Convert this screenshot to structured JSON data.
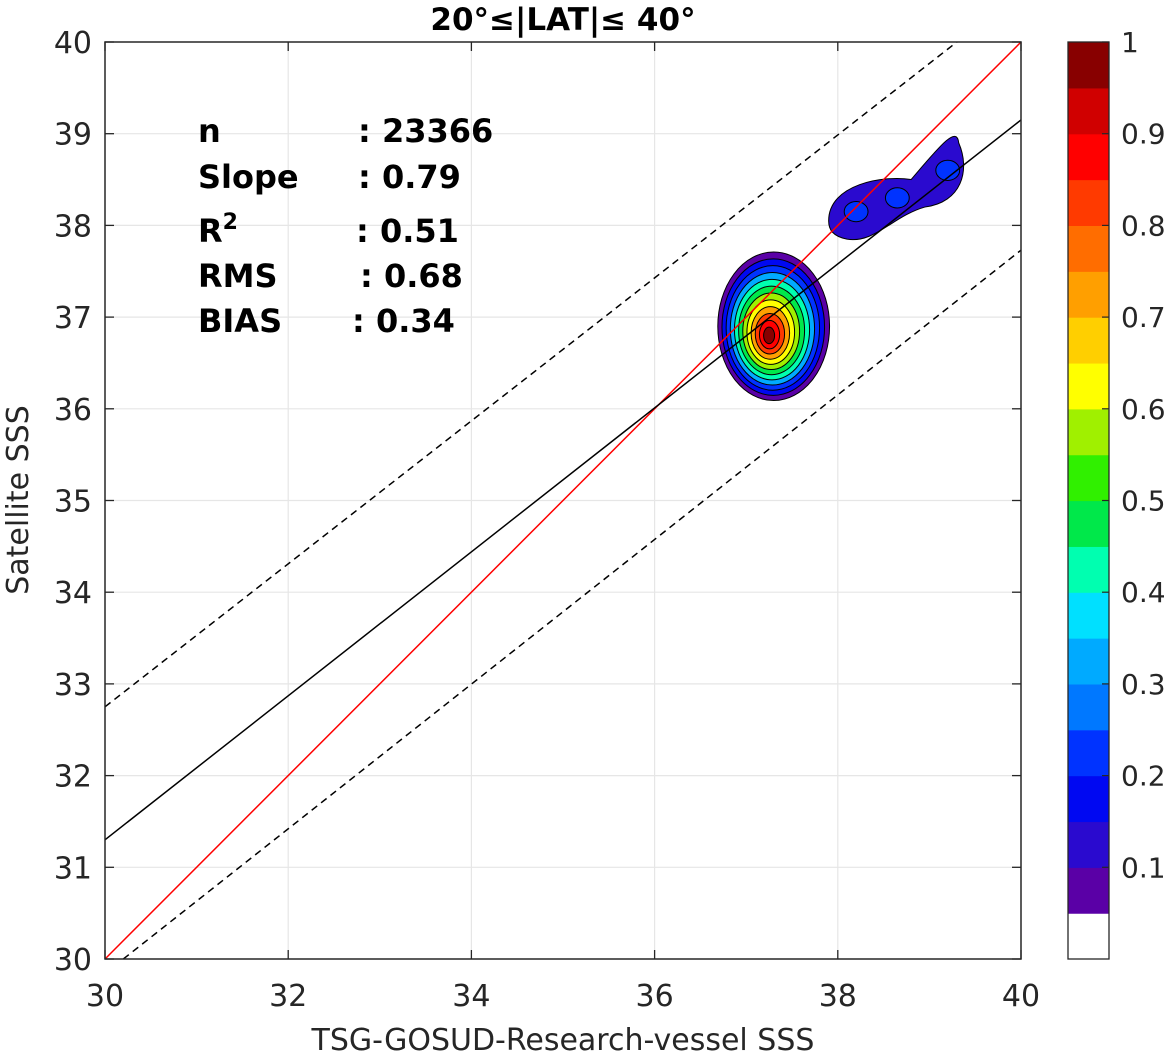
{
  "chart_data": {
    "type": "contour",
    "title": "20°≤|LAT|≤ 40°",
    "xlabel": "TSG-GOSUD-Research-vessel SSS",
    "ylabel": "Satellite SSS",
    "xlim": [
      30,
      40
    ],
    "ylim": [
      30,
      40
    ],
    "xticks": [
      "30",
      "32",
      "34",
      "36",
      "38",
      "40"
    ],
    "yticks": [
      "30",
      "31",
      "32",
      "33",
      "34",
      "35",
      "36",
      "37",
      "38",
      "39",
      "40"
    ],
    "grid": true,
    "stats": [
      {
        "label": "n",
        "value": ": 23366"
      },
      {
        "label": "Slope",
        "value": ": 0.79"
      },
      {
        "label": "R",
        "sup": "2",
        "value": ": 0.51"
      },
      {
        "label": "RMS",
        "value": ": 0.68"
      },
      {
        "label": "BIAS",
        "value": ": 0.34"
      }
    ],
    "lines": [
      {
        "role": "one-to-one",
        "color": "#ff0000",
        "style": "solid",
        "x": [
          30,
          40
        ],
        "y": [
          30,
          40
        ]
      },
      {
        "role": "regression-fit",
        "color": "#000000",
        "style": "solid",
        "x": [
          30,
          40
        ],
        "y": [
          31.3,
          39.15
        ]
      },
      {
        "role": "upper-bound",
        "color": "#000000",
        "style": "dashed",
        "x": [
          30,
          39.3
        ],
        "y": [
          32.75,
          40.0
        ]
      },
      {
        "role": "lower-bound",
        "color": "#000000",
        "style": "dashed",
        "x": [
          30.2,
          40
        ],
        "y": [
          30.0,
          37.73
        ]
      }
    ],
    "density_clusters": [
      {
        "center_x": 37.25,
        "center_y": 36.8,
        "peak": 1.0
      },
      {
        "center_x": 38.2,
        "center_y": 38.15,
        "peak": 0.2
      },
      {
        "center_x": 38.65,
        "center_y": 38.3,
        "peak": 0.2
      },
      {
        "center_x": 39.2,
        "center_y": 38.6,
        "peak": 0.2
      }
    ],
    "colorbar": {
      "range": [
        0,
        1
      ],
      "tick_labels": [
        "0.1",
        "0.2",
        "0.3",
        "0.4",
        "0.5",
        "0.6",
        "0.7",
        "0.8",
        "0.9",
        "1"
      ],
      "tick_values": [
        0.1,
        0.2,
        0.3,
        0.4,
        0.5,
        0.6,
        0.7,
        0.8,
        0.9,
        1.0
      ],
      "colors": [
        "#ffffff",
        "#5a00a6",
        "#2a0acf",
        "#0008f2",
        "#0033ff",
        "#0078ff",
        "#00aaff",
        "#00e0ff",
        "#00ffb0",
        "#00e84a",
        "#30f000",
        "#a0f000",
        "#ffff00",
        "#ffcf00",
        "#ff9f00",
        "#ff6d00",
        "#ff3a00",
        "#ff0000",
        "#d00000",
        "#880000"
      ]
    }
  }
}
